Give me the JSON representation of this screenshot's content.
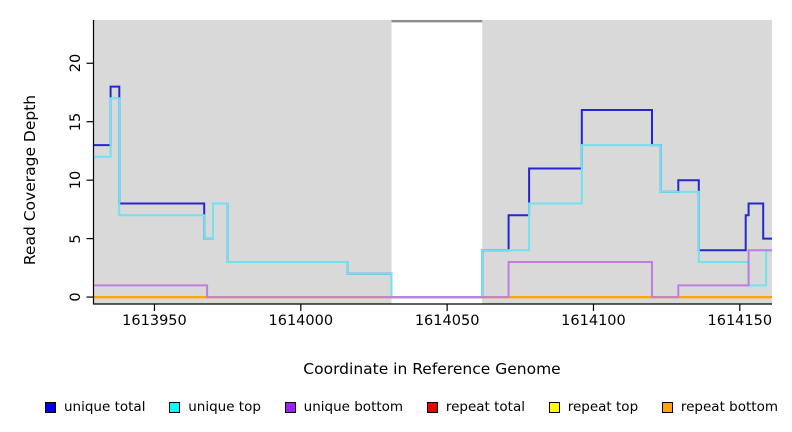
{
  "chart_data": {
    "type": "line",
    "subtype": "step-coverage",
    "title": "",
    "xlabel": "Coordinate in Reference Genome",
    "ylabel": "Read Coverage Depth",
    "xlim": [
      1613929,
      1614161
    ],
    "ylim": [
      -0.55,
      23.7
    ],
    "x_ticks": [
      1613950,
      1614000,
      1614050,
      1614100,
      1614150
    ],
    "y_ticks": [
      0,
      5,
      10,
      15,
      20
    ],
    "grid": "off",
    "legend_position": "bottom",
    "plot_bg_color": "#D9D9D9",
    "gap_region": {
      "start": 1614031,
      "end": 1614062,
      "fill": "#FFFFFF",
      "top_border_color": "#8C8C8C"
    },
    "series": [
      {
        "name": "repeat total",
        "legend_color": "#EE0000",
        "line_color": "#DD2222",
        "steps": [
          [
            1613929,
            0
          ]
        ]
      },
      {
        "name": "repeat top",
        "legend_color": "#FFFF00",
        "line_color": "#FFE800",
        "steps": [
          [
            1613929,
            0
          ]
        ]
      },
      {
        "name": "repeat bottom",
        "legend_color": "#FFA500",
        "line_color": "#FFA500",
        "steps": [
          [
            1613929,
            0
          ]
        ]
      },
      {
        "name": "unique total",
        "legend_color": "#0000EE",
        "line_color": "#2626CF",
        "steps": [
          [
            1613929,
            13
          ],
          [
            1613935,
            18
          ],
          [
            1613938,
            8
          ],
          [
            1613967,
            5
          ],
          [
            1613970,
            8
          ],
          [
            1613975,
            3
          ],
          [
            1614016,
            2
          ],
          [
            1614031,
            0
          ],
          [
            1614062,
            4
          ],
          [
            1614071,
            7
          ],
          [
            1614078,
            11
          ],
          [
            1614096,
            16
          ],
          [
            1614120,
            13
          ],
          [
            1614123,
            9
          ],
          [
            1614129,
            10
          ],
          [
            1614136,
            4
          ],
          [
            1614152,
            7
          ],
          [
            1614153,
            8
          ],
          [
            1614158,
            5
          ]
        ]
      },
      {
        "name": "unique top",
        "legend_color": "#00FFFF",
        "line_color": "#6FE3EF",
        "steps": [
          [
            1613929,
            12
          ],
          [
            1613935,
            17
          ],
          [
            1613938,
            7
          ],
          [
            1613967,
            5
          ],
          [
            1613970,
            8
          ],
          [
            1613975,
            3
          ],
          [
            1614016,
            2
          ],
          [
            1614031,
            0
          ],
          [
            1614062,
            4
          ],
          [
            1614078,
            8
          ],
          [
            1614096,
            13
          ],
          [
            1614123,
            9
          ],
          [
            1614136,
            3
          ],
          [
            1614153,
            1
          ],
          [
            1614159,
            4
          ]
        ]
      },
      {
        "name": "unique bottom",
        "legend_color": "#A020F0",
        "line_color": "#BE7FDC",
        "steps": [
          [
            1613929,
            1
          ],
          [
            1613968,
            0
          ],
          [
            1614071,
            3
          ],
          [
            1614120,
            0
          ],
          [
            1614129,
            1
          ],
          [
            1614153,
            4
          ]
        ]
      }
    ],
    "legend_order": [
      "unique total",
      "unique top",
      "unique bottom",
      "repeat total",
      "repeat top",
      "repeat bottom"
    ]
  }
}
